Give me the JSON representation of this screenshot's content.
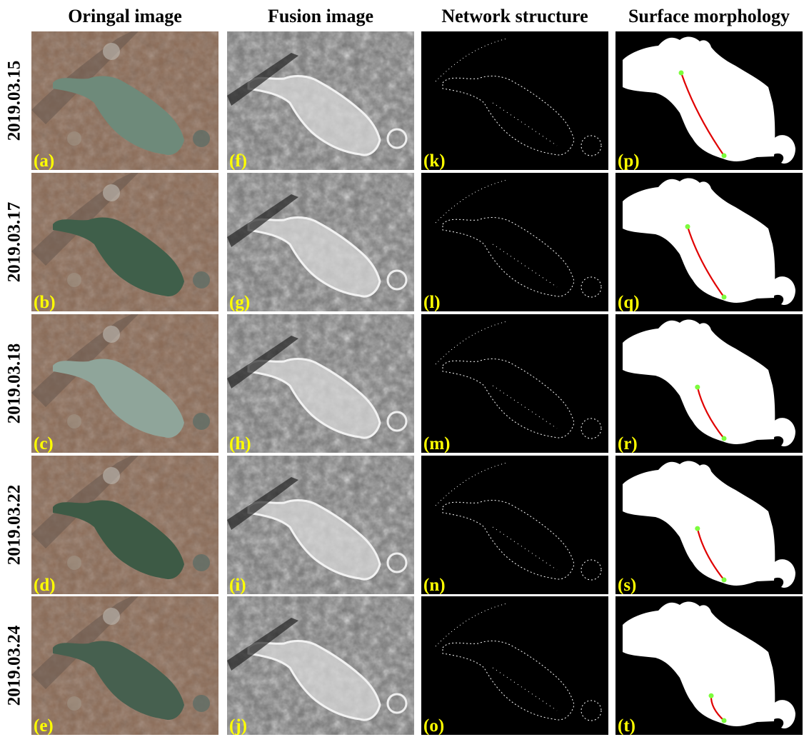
{
  "columns": [
    "Oringal image",
    "Fusion image",
    "Network structure",
    "Surface morphology"
  ],
  "rows": [
    {
      "date": "2019.03.15",
      "labels": [
        "(a)",
        "(f)",
        "(k)",
        "(p)"
      ],
      "path_length": 1.0
    },
    {
      "date": "2019.03.17",
      "labels": [
        "(b)",
        "(g)",
        "(l)",
        "(q)"
      ],
      "path_length": 0.85
    },
    {
      "date": "2019.03.18",
      "labels": [
        "(c)",
        "(h)",
        "(m)",
        "(r)"
      ],
      "path_length": 0.62
    },
    {
      "date": "2019.03.22",
      "labels": [
        "(d)",
        "(i)",
        "(n)",
        "(s)"
      ],
      "path_length": 0.62
    },
    {
      "date": "2019.03.24",
      "labels": [
        "(e)",
        "(j)",
        "(o)",
        "(t)"
      ],
      "path_length": 0.3
    }
  ],
  "row_tints": [
    "#6e8a7a",
    "#3f5f4a",
    "#8fa59a",
    "#3d5a45",
    "#46604f"
  ],
  "colors": {
    "label": "#ffff00",
    "path": "#e00000",
    "endpoint": "#7cfc3c",
    "lake": "#ffffff",
    "background": "#000000"
  }
}
